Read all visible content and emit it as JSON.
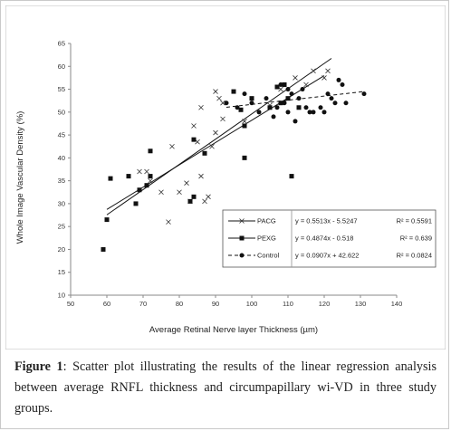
{
  "chart_data": {
    "type": "scatter",
    "xlabel": "Average Retinal Nerve layer Thickness (µm)",
    "ylabel": "Whole Image Vascular Density (%)",
    "xlim": [
      50,
      140
    ],
    "ylim": [
      10,
      65
    ],
    "xticks": [
      50,
      60,
      70,
      80,
      90,
      100,
      110,
      120,
      130,
      140
    ],
    "yticks": [
      10,
      15,
      20,
      25,
      30,
      35,
      40,
      45,
      50,
      55,
      60,
      65
    ],
    "grid": false,
    "legend_position": "lower-right",
    "series": [
      {
        "name": "PACG",
        "marker": "x",
        "line_style": "solid",
        "equation": "y = 0.5513x - 5.5247",
        "r2": "R² = 0.5591",
        "slope": 0.5513,
        "intercept": -5.5247,
        "fit_range": [
          60,
          122
        ],
        "points": [
          [
            69,
            37
          ],
          [
            71,
            37
          ],
          [
            72,
            35
          ],
          [
            75,
            32.5
          ],
          [
            77,
            26
          ],
          [
            78,
            42.5
          ],
          [
            80,
            32.5
          ],
          [
            82,
            34.5
          ],
          [
            83,
            30.5
          ],
          [
            84,
            47
          ],
          [
            85,
            43.5
          ],
          [
            86,
            36
          ],
          [
            86,
            51
          ],
          [
            87,
            30.5
          ],
          [
            88,
            31.5
          ],
          [
            89,
            42.5
          ],
          [
            90,
            54.5
          ],
          [
            90,
            45.5
          ],
          [
            91,
            53
          ],
          [
            92,
            52
          ],
          [
            92,
            48.5
          ],
          [
            98,
            48
          ],
          [
            105,
            51.5
          ],
          [
            108,
            55
          ],
          [
            112,
            57.5
          ],
          [
            115,
            56
          ],
          [
            117,
            59
          ],
          [
            120,
            57.5
          ],
          [
            121,
            59
          ]
        ]
      },
      {
        "name": "PEXG",
        "marker": "square",
        "line_style": "solid",
        "equation": "y = 0.4874x - 0.518",
        "r2": "R² = 0.639",
        "slope": 0.4874,
        "intercept": -0.518,
        "fit_range": [
          60,
          120
        ],
        "points": [
          [
            59,
            20
          ],
          [
            60,
            26.5
          ],
          [
            61,
            35.5
          ],
          [
            66,
            36
          ],
          [
            68,
            30
          ],
          [
            69,
            33
          ],
          [
            71,
            34
          ],
          [
            72,
            41.5
          ],
          [
            72,
            36
          ],
          [
            83,
            30.5
          ],
          [
            84,
            31.5
          ],
          [
            84,
            44
          ],
          [
            87,
            41
          ],
          [
            95,
            54.5
          ],
          [
            97,
            50.5
          ],
          [
            98,
            40
          ],
          [
            98,
            47
          ],
          [
            100,
            53
          ],
          [
            105,
            51
          ],
          [
            107,
            55.5
          ],
          [
            108,
            52
          ],
          [
            109,
            56
          ],
          [
            110,
            53
          ],
          [
            111,
            36
          ],
          [
            113,
            51
          ]
        ]
      },
      {
        "name": "Control",
        "marker": "circle",
        "line_style": "dashed",
        "equation": "y = 0.0907x + 42.622",
        "r2": "R² = 0.0824",
        "slope": 0.0907,
        "intercept": 42.622,
        "fit_range": [
          93,
          131
        ],
        "points": [
          [
            93,
            52
          ],
          [
            96,
            51
          ],
          [
            98,
            54
          ],
          [
            100,
            52
          ],
          [
            102,
            50
          ],
          [
            104,
            53
          ],
          [
            106,
            49
          ],
          [
            107,
            51
          ],
          [
            108,
            56
          ],
          [
            109,
            52
          ],
          [
            110,
            55
          ],
          [
            110,
            50
          ],
          [
            111,
            54
          ],
          [
            112,
            48
          ],
          [
            113,
            53
          ],
          [
            114,
            55
          ],
          [
            115,
            51
          ],
          [
            116,
            50
          ],
          [
            117,
            50
          ],
          [
            119,
            51
          ],
          [
            120,
            50
          ],
          [
            121,
            54
          ],
          [
            122,
            53
          ],
          [
            123,
            52
          ],
          [
            124,
            57
          ],
          [
            125,
            56
          ],
          [
            126,
            52
          ],
          [
            131,
            54
          ]
        ]
      }
    ]
  },
  "caption": {
    "label": "Figure 1",
    "text": ": Scatter plot illustrating the results of the linear regression analysis between average RNFL thickness and circumpapillary wi-VD in three study groups."
  }
}
